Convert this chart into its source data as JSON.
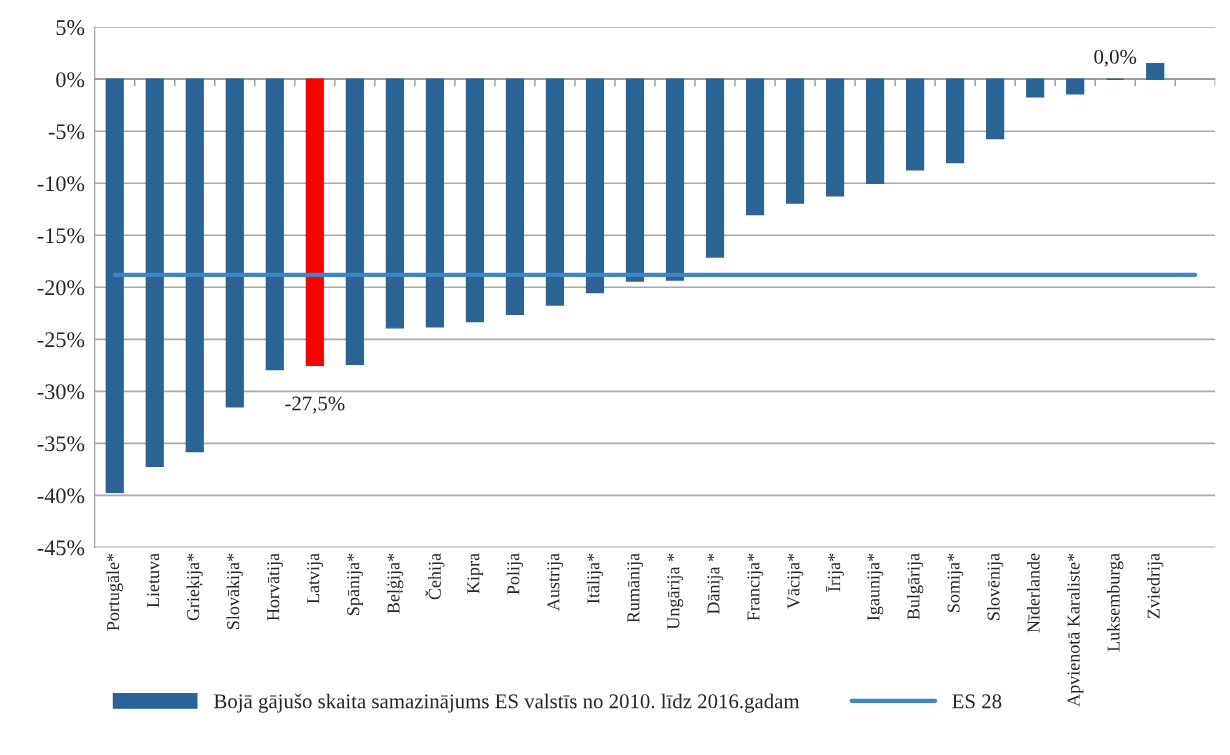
{
  "chart_data": {
    "type": "bar",
    "categories": [
      "Portugāle*",
      "Lietuva",
      "Grieķija*",
      "Slovākija*",
      "Horvātija",
      "Latvija",
      "Spānija*",
      "Beļģija*",
      "Čehija",
      "Kipra",
      "Polija",
      "Austrija",
      "Itālija*",
      "Rumānija",
      "Ungārija *",
      "Dānija *",
      "Francija*",
      "Vācija*",
      "Īrija*",
      "Igaunija*",
      "Bulgārija",
      "Somija*",
      "Slovēnija",
      "Nīderlande",
      "Apvienotā Karaliste*",
      "Luksemburga",
      "Zviedrija",
      null
    ],
    "series": [
      {
        "name": "Bojā gājušo skaita samazinājums ES valstīs no 2010. līdz 2016.gadam",
        "color": "#2a6496",
        "colors": [
          "#2a6496",
          "#2a6496",
          "#2a6496",
          "#2a6496",
          "#2a6496",
          "#ff0000",
          "#2a6496",
          "#2a6496",
          "#2a6496",
          "#2a6496",
          "#2a6496",
          "#2a6496",
          "#2a6496",
          "#2a6496",
          "#2a6496",
          "#2a6496",
          "#2a6496",
          "#2a6496",
          "#2a6496",
          "#2a6496",
          "#2a6496",
          "#2a6496",
          "#2a6496",
          "#2a6496",
          "#2a6496",
          "#2a6496",
          "#2a6496",
          "#2a6496"
        ],
        "values": [
          -39.7,
          -37.2,
          -35.8,
          -31.5,
          -27.9,
          -27.5,
          -27.4,
          -23.9,
          -23.8,
          -23.3,
          -22.6,
          -21.7,
          -20.5,
          -19.4,
          -19.3,
          -17.1,
          -13.0,
          -11.9,
          -11.2,
          -10.0,
          -8.7,
          -8.0,
          -5.7,
          -1.7,
          -1.4,
          0.0,
          1.5,
          null
        ],
        "value_labels": [
          null,
          null,
          null,
          null,
          null,
          "-27,5%",
          null,
          null,
          null,
          null,
          null,
          null,
          null,
          null,
          null,
          null,
          null,
          null,
          null,
          null,
          null,
          null,
          null,
          null,
          null,
          "0,0%",
          null,
          null
        ]
      },
      {
        "name": "ES 28",
        "type": "line",
        "color": "#3d85c6",
        "values": [
          -18.8,
          -18.8,
          -18.8,
          -18.8,
          -18.8,
          -18.8,
          -18.8,
          -18.8,
          -18.8,
          -18.8,
          -18.8,
          -18.8,
          -18.8,
          -18.8,
          -18.8,
          -18.8,
          -18.8,
          -18.8,
          -18.8,
          -18.8,
          -18.8,
          -18.8,
          -18.8,
          -18.8,
          -18.8,
          -18.8,
          -18.8,
          -18.8
        ]
      }
    ],
    "ylim": [
      -45,
      5
    ],
    "yticks": [
      {
        "value": 5,
        "label": "5%"
      },
      {
        "value": 0,
        "label": "0%"
      },
      {
        "value": -5,
        "label": "-5%"
      },
      {
        "value": -10,
        "label": "-10%"
      },
      {
        "value": -15,
        "label": "-15%"
      },
      {
        "value": -20,
        "label": "-20%"
      },
      {
        "value": -25,
        "label": "-25%"
      },
      {
        "value": -30,
        "label": "-30%"
      },
      {
        "value": -35,
        "label": "-35%"
      },
      {
        "value": -40,
        "label": "-40%"
      },
      {
        "value": -45,
        "label": "-45%"
      }
    ],
    "grid": "y",
    "legend": "bottom",
    "marker": "none",
    "line_style": "solid"
  }
}
